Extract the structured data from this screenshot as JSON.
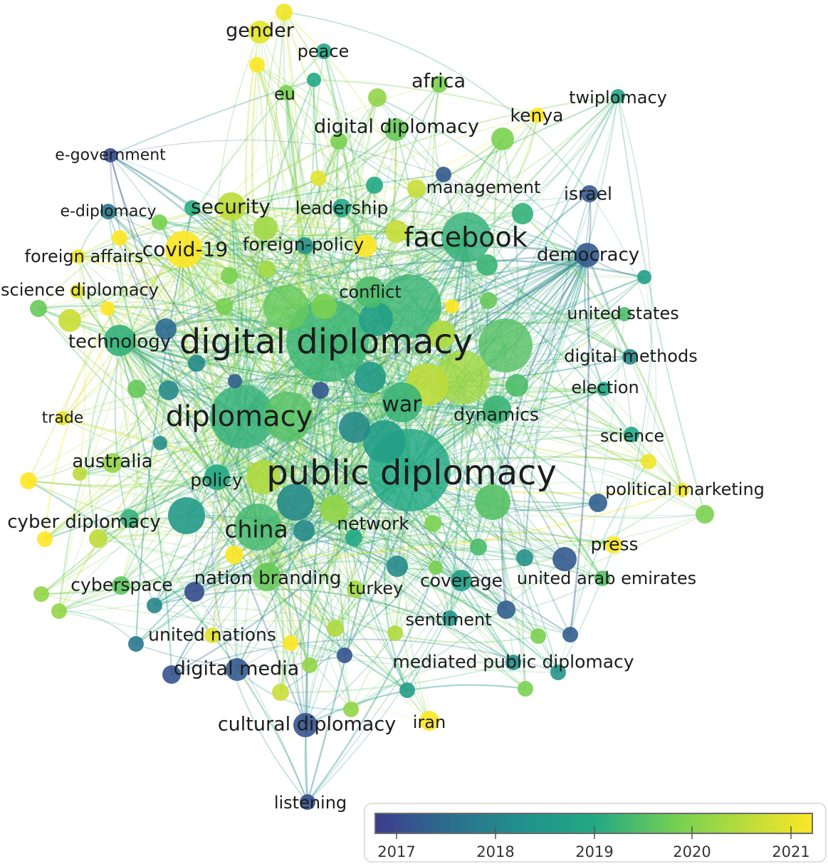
{
  "color_scale": {
    "years": [
      "2017",
      "2018",
      "2019",
      "2020",
      "2021"
    ],
    "stops": [
      "#3d3b8e",
      "#2a788e",
      "#22a884",
      "#7ad151",
      "#fde725"
    ]
  },
  "labeled_nodes": [
    {
      "label": "digital diplomacy",
      "weight": 10,
      "year": 2019.3
    },
    {
      "label": "public diplomacy",
      "weight": 10,
      "year": 2019.0
    },
    {
      "label": "diplomacy",
      "weight": 8,
      "year": 2019.2
    },
    {
      "label": "facebook",
      "weight": 6,
      "year": 2019.2
    },
    {
      "label": "china",
      "weight": 5,
      "year": 2019.4
    },
    {
      "label": "war",
      "weight": 4,
      "year": 2019.3
    },
    {
      "label": "dynamics",
      "weight": 3,
      "year": 2019.3
    },
    {
      "label": "covid-19",
      "weight": 4,
      "year": 2021.0
    },
    {
      "label": "security",
      "weight": 3,
      "year": 2020.5
    },
    {
      "label": "conflict",
      "weight": 3,
      "year": 2019.5
    },
    {
      "label": "nation branding",
      "weight": 3,
      "year": 2019.8
    },
    {
      "label": "network",
      "weight": 3,
      "year": 2020.2
    },
    {
      "label": "policy",
      "weight": 3,
      "year": 2019.0
    },
    {
      "label": "australia",
      "weight": 2,
      "year": 2020.2
    },
    {
      "label": "technology",
      "weight": 3,
      "year": 2019.2
    },
    {
      "label": "democracy",
      "weight": 3,
      "year": 2017.5
    },
    {
      "label": "cyber diplomacy",
      "weight": 2,
      "year": 2020.5
    },
    {
      "label": "coverage",
      "weight": 2,
      "year": 2018.8
    },
    {
      "label": "digital diplomacy",
      "weight": 2,
      "year": 2019.8
    },
    {
      "label": "africa",
      "weight": 2,
      "year": 2020.0
    },
    {
      "label": "gender",
      "weight": 2,
      "year": 2020.8
    },
    {
      "label": "peace",
      "weight": 2,
      "year": 2019.0
    },
    {
      "label": "eu",
      "weight": 2,
      "year": 2020.0
    },
    {
      "label": "kenya",
      "weight": 2,
      "year": 2021.0
    },
    {
      "label": "twiplomacy",
      "weight": 2,
      "year": 2018.9
    },
    {
      "label": "e-government",
      "weight": 2,
      "year": 2017.3
    },
    {
      "label": "management",
      "weight": 2,
      "year": 2020.6
    },
    {
      "label": "israel",
      "weight": 2,
      "year": 2017.5
    },
    {
      "label": "leadership",
      "weight": 2,
      "year": 2019.0
    },
    {
      "label": "e-diplomacy",
      "weight": 2,
      "year": 2018.0
    },
    {
      "label": "foreign-policy",
      "weight": 2,
      "year": 2018.5
    },
    {
      "label": "foreign affairs",
      "weight": 2,
      "year": 2020.9
    },
    {
      "label": "science diplomacy",
      "weight": 2,
      "year": 2020.8
    },
    {
      "label": "united states",
      "weight": 2,
      "year": 2019.5
    },
    {
      "label": "digital methods",
      "weight": 2,
      "year": 2018.3
    },
    {
      "label": "election",
      "weight": 2,
      "year": 2019.0
    },
    {
      "label": "trade",
      "weight": 2,
      "year": 2020.8
    },
    {
      "label": "science",
      "weight": 2,
      "year": 2019.0
    },
    {
      "label": "political marketing",
      "weight": 2,
      "year": 2020.9
    },
    {
      "label": "press",
      "weight": 2,
      "year": 2021.0
    },
    {
      "label": "united arab emirates",
      "weight": 2,
      "year": 2019.6
    },
    {
      "label": "turkey",
      "weight": 2,
      "year": 2020.3
    },
    {
      "label": "cyberspace",
      "weight": 2,
      "year": 2019.7
    },
    {
      "label": "sentiment",
      "weight": 2,
      "year": 2018.6
    },
    {
      "label": "united nations",
      "weight": 2,
      "year": 2020.8
    },
    {
      "label": "mediated public diplomacy",
      "weight": 2,
      "year": 2018.5
    },
    {
      "label": "digital media",
      "weight": 2,
      "year": 2017.5
    },
    {
      "label": "cultural diplomacy",
      "weight": 2,
      "year": 2017.4
    },
    {
      "label": "iran",
      "weight": 2,
      "year": 2021.0
    },
    {
      "label": "listening",
      "weight": 2,
      "year": 2017.3
    }
  ]
}
